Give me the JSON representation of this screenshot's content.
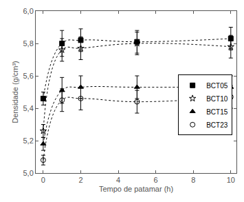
{
  "chart_data": {
    "type": "scatter",
    "x_label": "Tempo de patamar (h)",
    "y_label": "Densidade (g/cm³)",
    "xlim": [
      -0.4,
      10.3
    ],
    "xticks": [
      0,
      2,
      4,
      6,
      8,
      10
    ],
    "ylim": [
      5.0,
      6.0
    ],
    "yticks": [
      {
        "value": 5.0,
        "label": "5,0"
      },
      {
        "value": 5.2,
        "label": "5,2"
      },
      {
        "value": 5.4,
        "label": "5,4"
      },
      {
        "value": 5.6,
        "label": "5,6"
      },
      {
        "value": 5.8,
        "label": "5,8"
      },
      {
        "value": 6.0,
        "label": "6,0"
      }
    ],
    "grid": false,
    "legend": "right",
    "x": [
      0,
      1,
      2,
      5,
      10
    ],
    "series": [
      {
        "name": "BCT05",
        "color": "#000000",
        "marker": "square",
        "line_style": "dot",
        "values": [
          5.46,
          5.8,
          5.82,
          5.81,
          5.83
        ],
        "errors": [
          0.04,
          0.08,
          0.07,
          0.07,
          0.07
        ]
      },
      {
        "name": "BCT10",
        "color": "#000000",
        "marker": "star-open",
        "line_style": "dot",
        "values": [
          5.26,
          5.76,
          5.77,
          5.8,
          5.78
        ],
        "errors": [
          0.04,
          0.07,
          0.07,
          0.07,
          0.07
        ]
      },
      {
        "name": "BCT15",
        "color": "#000000",
        "marker": "triangle-up",
        "line_style": "dot",
        "values": [
          5.18,
          5.51,
          5.53,
          5.53,
          5.53
        ],
        "errors": [
          0.04,
          0.08,
          0.07,
          0.07,
          0.07
        ]
      },
      {
        "name": "BCT23",
        "color": "#000000",
        "marker": "circle-open",
        "line_style": "dot",
        "values": [
          5.08,
          5.45,
          5.46,
          5.44,
          5.47
        ],
        "errors": [
          0.03,
          0.07,
          0.07,
          0.07,
          0.07
        ]
      }
    ]
  }
}
